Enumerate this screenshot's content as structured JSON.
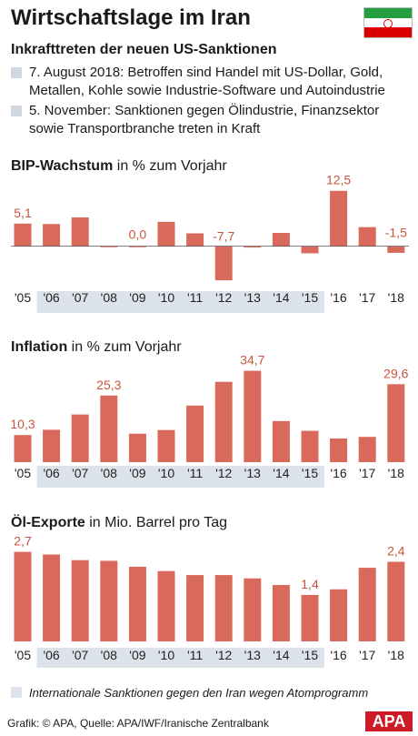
{
  "title": "Wirtschaftslage im Iran",
  "subtitle": "Inkrafttreten der neuen US-Sanktionen",
  "bullets": [
    "7. August 2018: Betroffen sind Handel mit US-Dollar, Gold, Metallen, Kohle sowie Industrie-Software und Autoindustrie",
    "5. November:  Sanktionen gegen Ölindustrie, Finanzsektor sowie Transportbranche treten in Kraft"
  ],
  "colors": {
    "bar": "#d96a5b",
    "label": "#c8553f",
    "shade": "#dde3ea",
    "bullet": "#cfd8e0",
    "flag_green": "#239f40",
    "flag_red": "#da0000",
    "apa": "#cc1b26"
  },
  "chart_data": [
    {
      "type": "bar",
      "title_bold": "BIP-Wachstum",
      "title_rest": " in % zum Vorjahr",
      "categories": [
        "'05",
        "'06",
        "'07",
        "'08",
        "'09",
        "'10",
        "'11",
        "'12",
        "'13",
        "'14",
        "'15",
        "'16",
        "'17",
        "'18"
      ],
      "values": [
        5.1,
        5.0,
        6.5,
        -0.2,
        0.0,
        5.5,
        2.9,
        -7.7,
        -0.3,
        3.0,
        -1.6,
        12.5,
        4.3,
        -1.5
      ],
      "data_labels": {
        "0": "5,1",
        "4": "0,0",
        "7": "-7,7",
        "11": "12,5",
        "13": "-1,5"
      },
      "ylim": [
        -8.5,
        14.5
      ],
      "shaded_categories": [
        1,
        10
      ]
    },
    {
      "type": "bar",
      "title_bold": "Inflation",
      "title_rest": " in % zum Vorjahr",
      "categories": [
        "'05",
        "'06",
        "'07",
        "'08",
        "'09",
        "'10",
        "'11",
        "'12",
        "'13",
        "'14",
        "'15",
        "'16",
        "'17",
        "'18"
      ],
      "values": [
        10.3,
        12.3,
        18.1,
        25.3,
        10.8,
        12.2,
        21.5,
        30.5,
        34.7,
        15.6,
        11.9,
        9.0,
        9.6,
        29.6
      ],
      "data_labels": {
        "0": "10,3",
        "3": "25,3",
        "8": "34,7",
        "13": "29,6"
      },
      "ylim": [
        0,
        38
      ],
      "shaded_categories": [
        1,
        10
      ]
    },
    {
      "type": "bar",
      "title_bold": "Öl-Exporte",
      "title_rest": "  in Mio. Barrel pro Tag",
      "categories": [
        "'05",
        "'06",
        "'07",
        "'08",
        "'09",
        "'10",
        "'11",
        "'12",
        "'13",
        "'14",
        "'15",
        "'16",
        "'17",
        "'18"
      ],
      "values": [
        2.7,
        2.62,
        2.45,
        2.43,
        2.25,
        2.12,
        2.0,
        2.0,
        1.9,
        1.7,
        1.4,
        1.57,
        2.22,
        2.4
      ],
      "data_labels": {
        "0": "2,7",
        "10": "1,4",
        "13": "2,4"
      },
      "ylim": [
        0,
        3.1
      ],
      "shaded_categories": [
        1,
        10
      ]
    }
  ],
  "legend": "Internationale Sanktionen gegen den Iran wegen Atomprogramm",
  "source": "Grafik: © APA, Quelle: APA/IWF/Iranische Zentralbank",
  "logo": "APA"
}
